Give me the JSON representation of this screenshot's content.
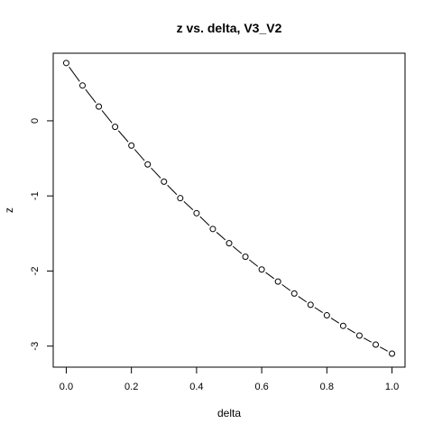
{
  "chart_data": {
    "type": "line",
    "title": "z vs. delta, V3_V2",
    "xlabel": "delta",
    "ylabel": "z",
    "xlim": [
      -0.04,
      1.04
    ],
    "ylim": [
      -3.28,
      0.9
    ],
    "x_ticks": [
      0.0,
      0.2,
      0.4,
      0.6,
      0.8,
      1.0
    ],
    "x_tick_labels": [
      "0.0",
      "0.2",
      "0.4",
      "0.6",
      "0.8",
      "1.0"
    ],
    "y_ticks": [
      0,
      -1,
      -2,
      -3
    ],
    "y_tick_labels": [
      "0",
      "-1",
      "-2",
      "-3"
    ],
    "grid": false,
    "series": [
      {
        "style": "points-with-dashed-line",
        "x": [
          0.0,
          0.05,
          0.1,
          0.15,
          0.2,
          0.25,
          0.3,
          0.35,
          0.4,
          0.45,
          0.5,
          0.55,
          0.6,
          0.65,
          0.7,
          0.75,
          0.8,
          0.85,
          0.9,
          0.95,
          1.0
        ],
        "y": [
          0.77,
          0.47,
          0.19,
          -0.08,
          -0.33,
          -0.58,
          -0.81,
          -1.03,
          -1.23,
          -1.44,
          -1.63,
          -1.81,
          -1.98,
          -2.14,
          -2.3,
          -2.45,
          -2.59,
          -2.73,
          -2.86,
          -2.98,
          -3.1
        ]
      }
    ]
  }
}
